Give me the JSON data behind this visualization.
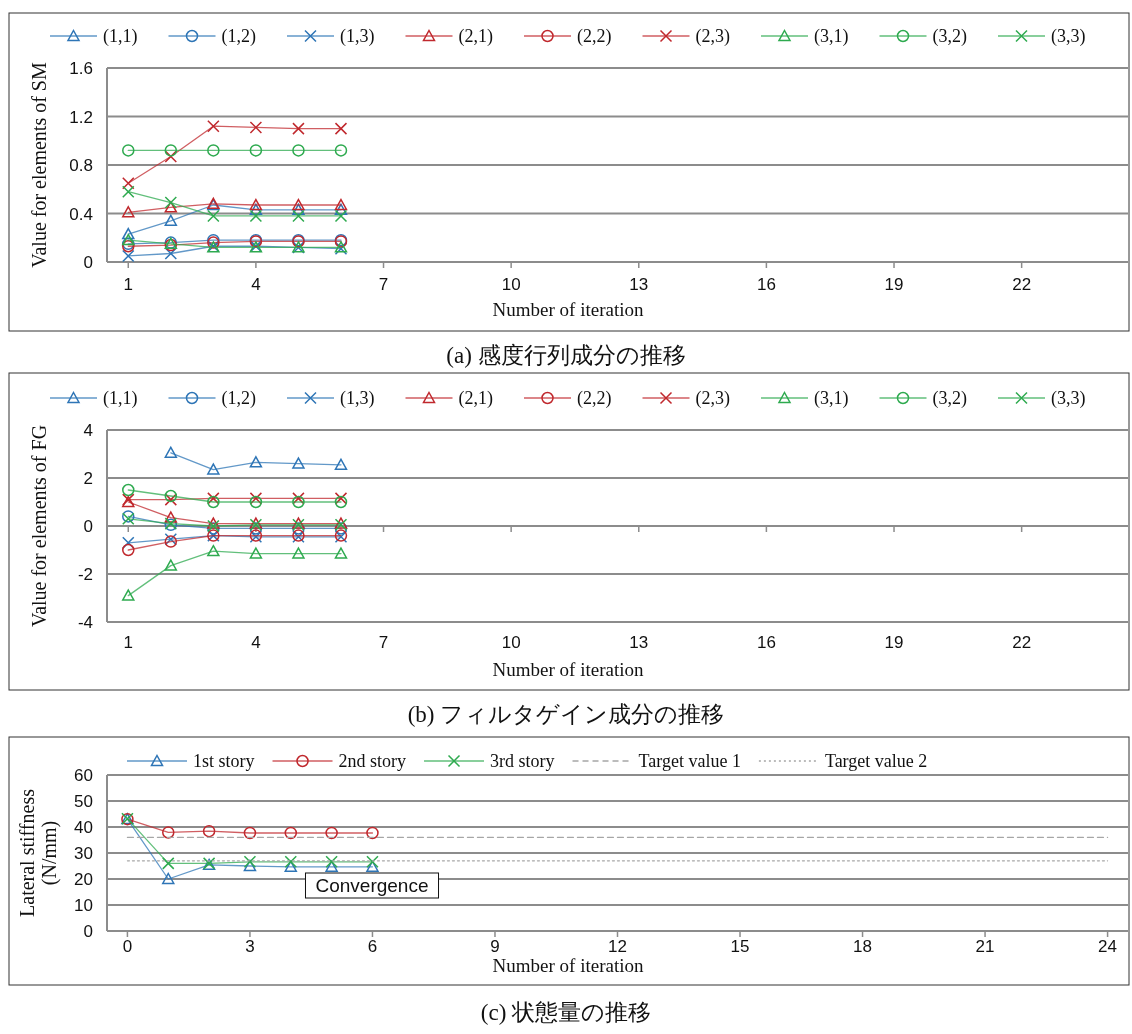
{
  "chart_data": [
    {
      "type": "line",
      "title": "(a) 感度行列成分の推移",
      "xlabel": "Number of iteration",
      "ylabel": "Value for elements of SM",
      "x": [
        1,
        2,
        3,
        4,
        5,
        6
      ],
      "xlim": [
        0.5,
        24.5
      ],
      "xticks": [
        1,
        4,
        7,
        10,
        13,
        16,
        19,
        22
      ],
      "ylim": [
        0,
        1.6
      ],
      "yticks": [
        0,
        0.4,
        0.8,
        1.2,
        1.6
      ],
      "grid": "y",
      "legend": "top",
      "line_style": "solid",
      "series": [
        {
          "name": "(1,1)",
          "color": "#2e75b6",
          "marker": "triangle",
          "values": [
            0.23,
            0.34,
            0.47,
            0.43,
            0.43,
            0.43
          ]
        },
        {
          "name": "(1,2)",
          "color": "#2e75b6",
          "marker": "circle",
          "values": [
            0.15,
            0.16,
            0.18,
            0.18,
            0.18,
            0.18
          ]
        },
        {
          "name": "(1,3)",
          "color": "#2e75b6",
          "marker": "cross",
          "values": [
            0.05,
            0.07,
            0.13,
            0.13,
            0.12,
            0.11
          ]
        },
        {
          "name": "(2,1)",
          "color": "#c0282d",
          "marker": "triangle",
          "values": [
            0.41,
            0.45,
            0.48,
            0.47,
            0.47,
            0.47
          ]
        },
        {
          "name": "(2,2)",
          "color": "#c0282d",
          "marker": "circle",
          "values": [
            0.13,
            0.14,
            0.16,
            0.17,
            0.17,
            0.17
          ]
        },
        {
          "name": "(2,3)",
          "color": "#c0282d",
          "marker": "cross",
          "values": [
            0.65,
            0.87,
            1.12,
            1.11,
            1.1,
            1.1
          ]
        },
        {
          "name": "(3,1)",
          "color": "#2eaa4f",
          "marker": "triangle",
          "values": [
            0.18,
            0.15,
            0.12,
            0.12,
            0.12,
            0.12
          ]
        },
        {
          "name": "(3,2)",
          "color": "#2eaa4f",
          "marker": "circle",
          "values": [
            0.92,
            0.92,
            0.92,
            0.92,
            0.92,
            0.92
          ]
        },
        {
          "name": "(3,3)",
          "color": "#2eaa4f",
          "marker": "cross",
          "values": [
            0.58,
            0.49,
            0.38,
            0.38,
            0.38,
            0.38
          ]
        }
      ]
    },
    {
      "type": "line",
      "title": "(b) フィルタゲイン成分の推移",
      "xlabel": "Number of iteration",
      "ylabel": "Value for elements of FG",
      "x": [
        1,
        2,
        3,
        4,
        5,
        6
      ],
      "xlim": [
        0.5,
        24.5
      ],
      "xticks": [
        1,
        4,
        7,
        10,
        13,
        16,
        19,
        22
      ],
      "ylim": [
        -4,
        4
      ],
      "yticks": [
        -4,
        -2,
        0,
        2,
        4
      ],
      "grid": "y",
      "legend": "top",
      "line_style": "solid",
      "series": [
        {
          "name": "(1,1)",
          "color": "#2e75b6",
          "marker": "triangle",
          "values": [
            null,
            3.05,
            2.35,
            2.65,
            2.6,
            2.55
          ]
        },
        {
          "name": "(1,2)",
          "color": "#2e75b6",
          "marker": "circle",
          "values": [
            0.4,
            0.05,
            -0.1,
            -0.1,
            -0.1,
            -0.1
          ]
        },
        {
          "name": "(1,3)",
          "color": "#2e75b6",
          "marker": "cross",
          "values": [
            -0.7,
            -0.55,
            -0.4,
            -0.45,
            -0.45,
            -0.45
          ]
        },
        {
          "name": "(2,1)",
          "color": "#c0282d",
          "marker": "triangle",
          "values": [
            1.0,
            0.35,
            0.1,
            0.1,
            0.1,
            0.1
          ]
        },
        {
          "name": "(2,2)",
          "color": "#c0282d",
          "marker": "circle",
          "values": [
            -1.0,
            -0.65,
            -0.4,
            -0.4,
            -0.4,
            -0.4
          ]
        },
        {
          "name": "(2,3)",
          "color": "#c0282d",
          "marker": "cross",
          "values": [
            1.1,
            1.1,
            1.15,
            1.15,
            1.15,
            1.15
          ]
        },
        {
          "name": "(3,1)",
          "color": "#2eaa4f",
          "marker": "triangle",
          "values": [
            -2.9,
            -1.65,
            -1.05,
            -1.15,
            -1.15,
            -1.15
          ]
        },
        {
          "name": "(3,2)",
          "color": "#2eaa4f",
          "marker": "circle",
          "values": [
            1.5,
            1.25,
            1.0,
            1.0,
            1.0,
            1.0
          ]
        },
        {
          "name": "(3,3)",
          "color": "#2eaa4f",
          "marker": "cross",
          "values": [
            0.3,
            0.1,
            0.0,
            0.05,
            0.05,
            0.05
          ]
        }
      ]
    },
    {
      "type": "line",
      "title": "(c) 状態量の推移",
      "xlabel": "Number of iteration",
      "ylabel": "Lateral stiffness\n(N/mm)",
      "xlim": [
        -0.5,
        24.5
      ],
      "xticks": [
        0,
        3,
        6,
        9,
        12,
        15,
        18,
        21,
        24
      ],
      "ylim": [
        0,
        60
      ],
      "yticks": [
        0,
        10,
        20,
        30,
        40,
        50,
        60
      ],
      "grid": "y",
      "legend": "top",
      "annotations": [
        "Convergence"
      ],
      "series": [
        {
          "name": "1st story",
          "color": "#2e75b6",
          "marker": "triangle",
          "line_style": "solid",
          "x": [
            0,
            1,
            2,
            3,
            4,
            5,
            6
          ],
          "values": [
            43,
            20,
            25.4,
            25,
            24.7,
            24.7,
            24.7
          ]
        },
        {
          "name": "2nd story",
          "color": "#c0282d",
          "marker": "circle",
          "line_style": "solid",
          "x": [
            0,
            1,
            2,
            3,
            4,
            5,
            6
          ],
          "values": [
            43,
            37.9,
            38.4,
            37.7,
            37.7,
            37.7,
            37.7
          ]
        },
        {
          "name": "3rd story",
          "color": "#2eaa4f",
          "marker": "cross",
          "line_style": "solid",
          "x": [
            0,
            1,
            2,
            3,
            4,
            5,
            6
          ],
          "values": [
            43.2,
            26,
            26,
            26.6,
            26.6,
            26.6,
            26.6
          ]
        },
        {
          "name": "Target value 1",
          "color": "#a6a6a6",
          "marker": "none",
          "line_style": "dashed",
          "x": [
            0,
            24
          ],
          "values": [
            36,
            36
          ]
        },
        {
          "name": "Target value 2",
          "color": "#a6a6a6",
          "marker": "none",
          "line_style": "dotted",
          "x": [
            0,
            24
          ],
          "values": [
            27,
            27
          ]
        }
      ]
    }
  ]
}
